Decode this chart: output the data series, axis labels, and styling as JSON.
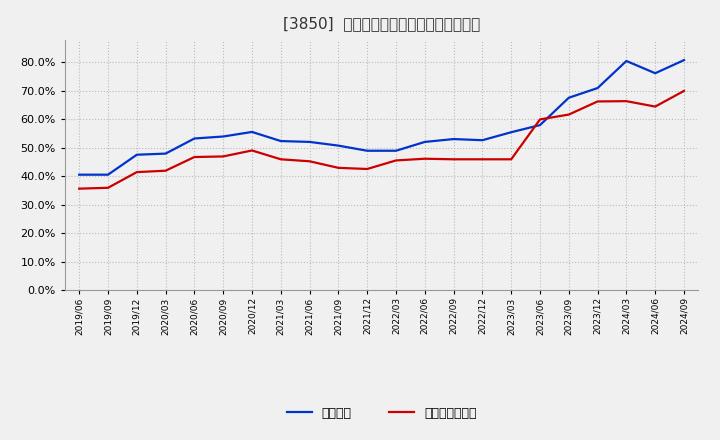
{
  "title": "[3850]  固定比率、固定長期適合率の推移",
  "x_labels": [
    "2019/06",
    "2019/09",
    "2019/12",
    "2020/03",
    "2020/06",
    "2020/09",
    "2020/12",
    "2021/03",
    "2021/06",
    "2021/09",
    "2021/12",
    "2022/03",
    "2022/06",
    "2022/09",
    "2022/12",
    "2023/03",
    "2023/06",
    "2023/09",
    "2023/12",
    "2024/03",
    "2024/06",
    "2024/09"
  ],
  "blue_values": [
    0.406,
    0.406,
    0.476,
    0.48,
    0.533,
    0.54,
    0.556,
    0.524,
    0.521,
    0.508,
    0.49,
    0.49,
    0.521,
    0.531,
    0.527,
    0.555,
    0.58,
    0.676,
    0.71,
    0.805,
    0.762,
    0.808
  ],
  "red_values": [
    0.357,
    0.36,
    0.415,
    0.42,
    0.468,
    0.47,
    0.491,
    0.46,
    0.453,
    0.43,
    0.426,
    0.456,
    0.462,
    0.46,
    0.46,
    0.46,
    0.6,
    0.617,
    0.663,
    0.664,
    0.645,
    0.7
  ],
  "blue_label": "固定比率",
  "red_label": "固定長期適合率",
  "blue_color": "#0033cc",
  "red_color": "#cc0000",
  "ylim": [
    0.0,
    0.88
  ],
  "yticks": [
    0.0,
    0.1,
    0.2,
    0.3,
    0.4,
    0.5,
    0.6,
    0.7,
    0.8
  ],
  "bg_color": "#f0f0f0",
  "plot_bg_color": "#f0f0f0",
  "grid_color": "#bbbbbb",
  "line_width": 1.6
}
